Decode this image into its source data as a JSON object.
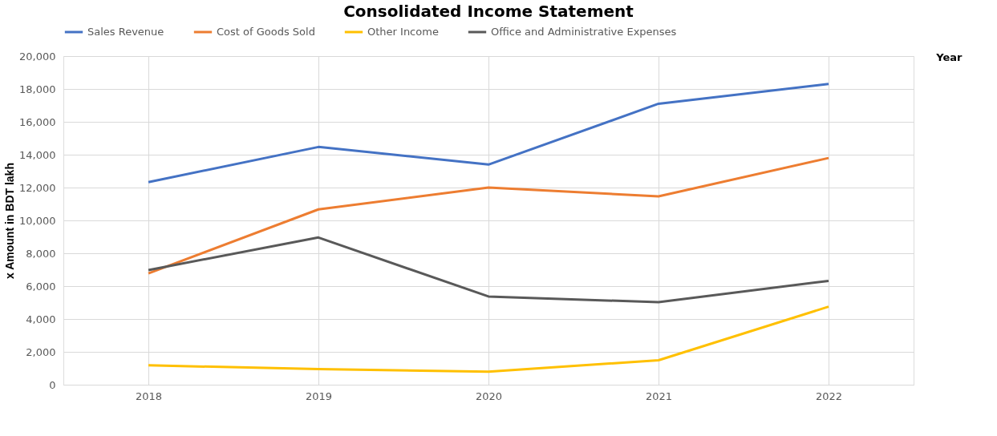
{
  "chart_data": {
    "type": "line",
    "title": "Consolidated Income Statement",
    "xlabel": "Year",
    "ylabel": "x Amount in BDT lakh",
    "categories": [
      "2018",
      "2019",
      "2020",
      "2021",
      "2022"
    ],
    "series": [
      {
        "name": "Sales Revenue",
        "color": "#4472c4",
        "values": [
          12330,
          14470,
          13400,
          17100,
          18300
        ]
      },
      {
        "name": "Cost of Goods Sold",
        "color": "#ed7d31",
        "values": [
          6770,
          10670,
          12000,
          11460,
          13800
        ]
      },
      {
        "name": "Other Income",
        "color": "#ffc000",
        "values": [
          1180,
          950,
          790,
          1490,
          4750
        ]
      },
      {
        "name": "Office and Administrative Expenses",
        "color": "#595959",
        "values": [
          6980,
          8960,
          5370,
          5020,
          6320
        ]
      }
    ],
    "ylim": [
      0,
      20000
    ],
    "yticks": [
      {
        "value": 0,
        "label": "0"
      },
      {
        "value": 2000,
        "label": "2,000"
      },
      {
        "value": 4000,
        "label": "4,000"
      },
      {
        "value": 6000,
        "label": "6,000"
      },
      {
        "value": 8000,
        "label": "8,000"
      },
      {
        "value": 10000,
        "label": "10,000"
      },
      {
        "value": 12000,
        "label": "12,000"
      },
      {
        "value": 14000,
        "label": "14,000"
      },
      {
        "value": 16000,
        "label": "16,000"
      },
      {
        "value": 18000,
        "label": "18,000"
      },
      {
        "value": 20000,
        "label": "20,000"
      }
    ],
    "grid": true,
    "legend": "top",
    "marker": "none",
    "line_style": "solid"
  }
}
